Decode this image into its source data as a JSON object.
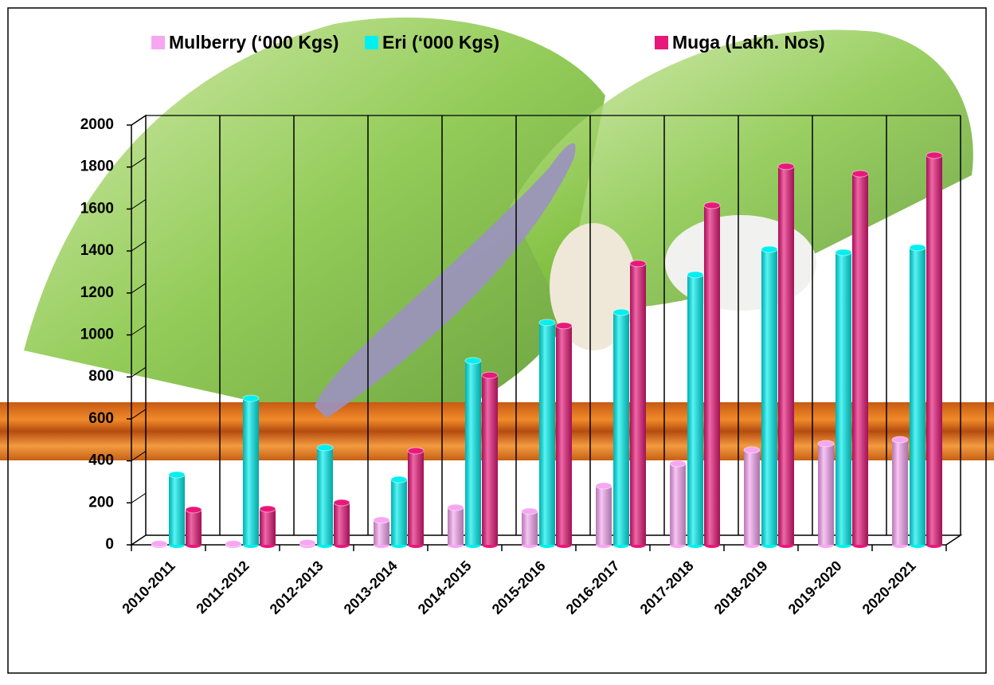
{
  "chart_data": {
    "type": "bar",
    "categories": [
      "2010-2011",
      "2011-2012",
      "2012-2013",
      "2013-2014",
      "2014-2015",
      "2015-2016",
      "2016-2017",
      "2017-2018",
      "2018-2019",
      "2019-2020",
      "2020-2021"
    ],
    "series": [
      {
        "name": "Mulberry (‘000 Kgs)",
        "color": "#f7a6f2",
        "values": [
          5,
          5,
          10,
          118,
          178,
          160,
          281,
          387,
          452,
          482,
          501
        ]
      },
      {
        "name": "Eri (‘000 Kgs)",
        "color": "#00f0f0",
        "values": [
          334,
          698,
          463,
          311,
          877,
          1059,
          1108,
          1287,
          1408,
          1393,
          1416
        ]
      },
      {
        "name": "Muga (Lakh. Nos)",
        "color": "#e8187a",
        "values": [
          167,
          171,
          201,
          448,
          808,
          1044,
          1340,
          1617,
          1803,
          1768,
          1856
        ]
      }
    ],
    "ylim": [
      0,
      2000
    ],
    "yticks": [
      0,
      200,
      400,
      600,
      800,
      1000,
      1200,
      1400,
      1600,
      1800,
      2000
    ],
    "grid": true
  }
}
